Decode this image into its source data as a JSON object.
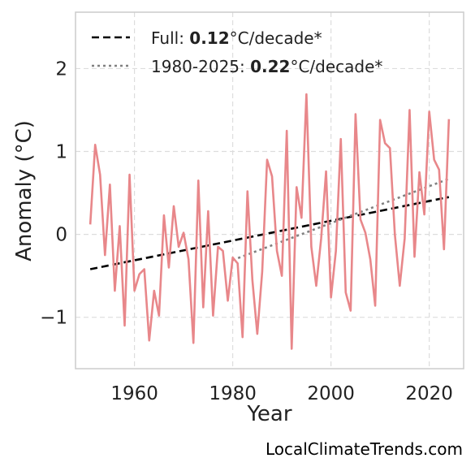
{
  "chart_data": {
    "type": "line",
    "xlabel": "Year",
    "ylabel": "Anomaly (°C)",
    "xlim": [
      1948,
      2027
    ],
    "ylim": [
      -1.62,
      2.68
    ],
    "xticks": [
      1960,
      1980,
      2000,
      2020
    ],
    "yticks": [
      -1,
      0,
      1,
      2
    ],
    "ytick_labels": [
      "−1",
      "0",
      "1",
      "2"
    ],
    "grid": true,
    "legend_position": "top-left",
    "series": [
      {
        "color": "#e8878a",
        "x": [
          1951,
          1952,
          1953,
          1954,
          1955,
          1956,
          1957,
          1958,
          1959,
          1960,
          1961,
          1962,
          1963,
          1964,
          1965,
          1966,
          1967,
          1968,
          1969,
          1970,
          1971,
          1972,
          1973,
          1974,
          1975,
          1976,
          1977,
          1978,
          1979,
          1980,
          1981,
          1982,
          1983,
          1984,
          1985,
          1986,
          1987,
          1988,
          1989,
          1990,
          1991,
          1992,
          1993,
          1994,
          1995,
          1996,
          1997,
          1998,
          1999,
          2000,
          2001,
          2002,
          2003,
          2004,
          2005,
          2006,
          2007,
          2008,
          2009,
          2010,
          2011,
          2012,
          2013,
          2014,
          2015,
          2016,
          2017,
          2018,
          2019,
          2020,
          2021,
          2022,
          2023,
          2024
        ],
        "y": [
          0.12,
          1.08,
          0.72,
          -0.25,
          0.6,
          -0.68,
          0.1,
          -1.1,
          0.72,
          -0.68,
          -0.48,
          -0.42,
          -1.28,
          -0.68,
          -0.98,
          0.23,
          -0.4,
          0.34,
          -0.15,
          0.02,
          -0.3,
          -1.31,
          0.65,
          -0.88,
          0.28,
          -0.98,
          -0.15,
          -0.2,
          -0.8,
          -0.28,
          -0.35,
          -1.24,
          0.52,
          -0.55,
          -1.2,
          -0.45,
          0.9,
          0.7,
          -0.2,
          -0.5,
          1.25,
          -1.38,
          0.57,
          0.2,
          1.69,
          -0.15,
          -0.62,
          -0.05,
          0.76,
          -0.76,
          -0.2,
          1.15,
          -0.7,
          -0.92,
          1.45,
          0.18,
          0.02,
          -0.3,
          -0.86,
          1.38,
          1.1,
          1.04,
          0.0,
          -0.62,
          -0.05,
          1.5,
          -0.27,
          0.75,
          0.24,
          1.48,
          0.9,
          0.78,
          -0.18,
          1.39
        ]
      }
    ],
    "trends": [
      {
        "label_prefix": "Full: ",
        "value": "0.12",
        "label_suffix": "°C/decade*",
        "style": "dashed",
        "color": "#000000",
        "x": [
          1951,
          2024
        ],
        "y": [
          -0.42,
          0.45
        ]
      },
      {
        "label_prefix": "1980-2025: ",
        "value": "0.22",
        "label_suffix": "°C/decade*",
        "style": "dotted",
        "color": "#808080",
        "x": [
          1980,
          2024
        ],
        "y": [
          -0.31,
          0.67
        ]
      }
    ]
  },
  "credit": "LocalClimateTrends.com"
}
